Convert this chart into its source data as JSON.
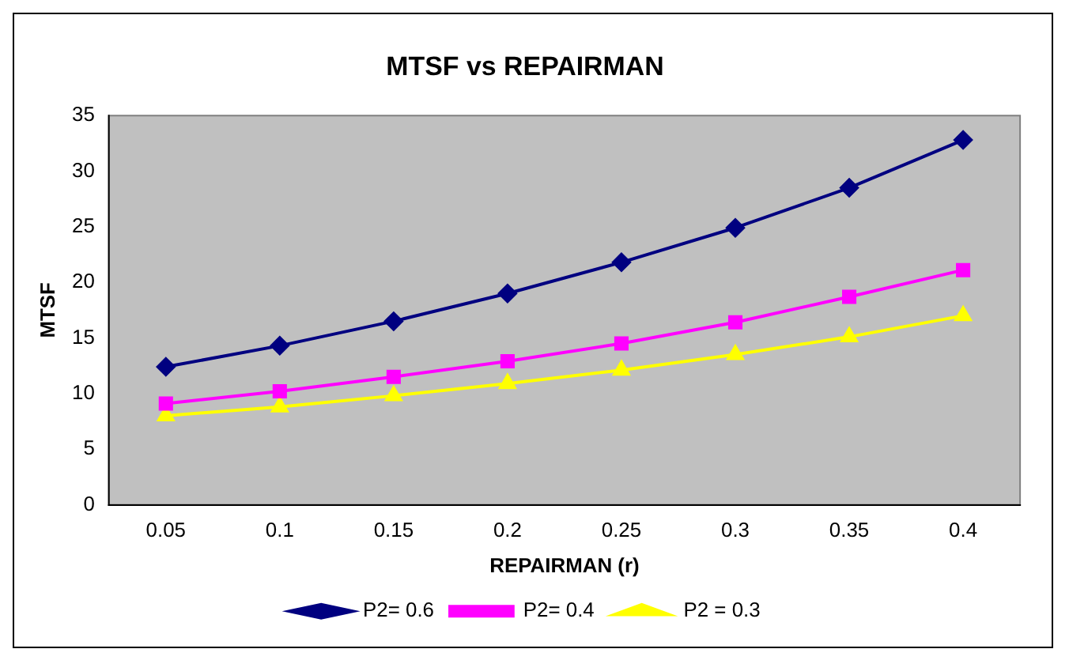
{
  "chart_data": {
    "type": "line",
    "title": "MTSF vs REPAIRMAN",
    "xlabel": "REPAIRMAN (r)",
    "ylabel": "MTSF",
    "categories": [
      "0.05",
      "0.1",
      "0.15",
      "0.2",
      "0.25",
      "0.3",
      "0.35",
      "0.4"
    ],
    "series": [
      {
        "name": "P2= 0.6",
        "color": "#000080",
        "marker": "diamond",
        "values": [
          12.4,
          14.3,
          16.5,
          19.0,
          21.8,
          24.9,
          28.5,
          32.8
        ]
      },
      {
        "name": "P2= 0.4",
        "color": "#ff00ff",
        "marker": "square",
        "values": [
          9.1,
          10.2,
          11.5,
          12.9,
          14.5,
          16.4,
          18.7,
          21.1
        ]
      },
      {
        "name": "P2 = 0.3",
        "color": "#ffff00",
        "marker": "triangle",
        "values": [
          8.0,
          8.8,
          9.8,
          10.9,
          12.1,
          13.5,
          15.1,
          17.0
        ]
      }
    ],
    "ylim": [
      0,
      35
    ],
    "yticks": [
      0,
      5,
      10,
      15,
      20,
      25,
      30,
      35
    ],
    "grid": false,
    "legend": "bottom",
    "line_style": "solid"
  }
}
